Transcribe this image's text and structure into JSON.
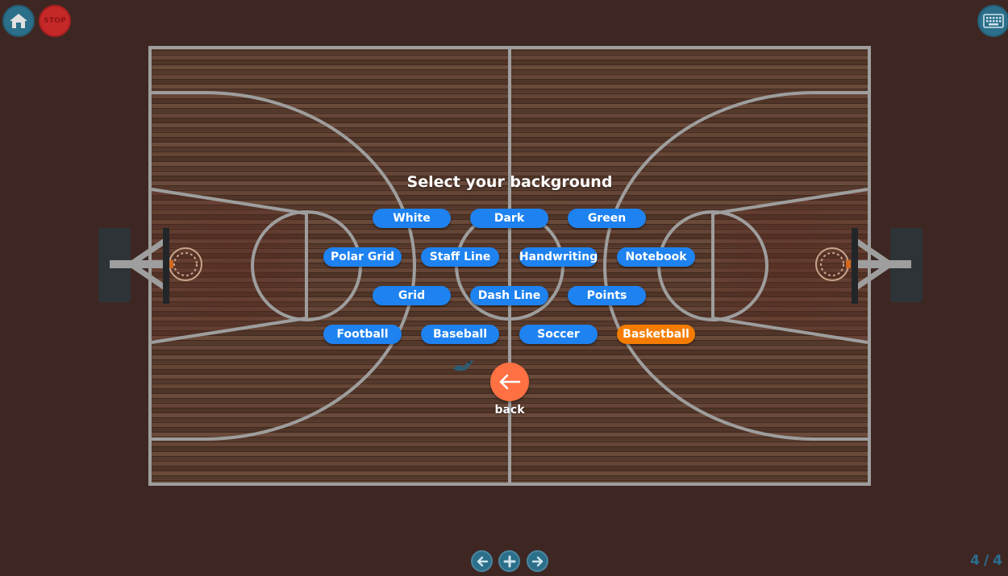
{
  "toolbar": {
    "home_icon": "home-icon",
    "stop_label": "STOP",
    "keyboard_icon": "keyboard-icon"
  },
  "dialog": {
    "title": "Select your background",
    "options": [
      {
        "label": "White",
        "selected": false
      },
      {
        "label": "Dark",
        "selected": false
      },
      {
        "label": "Green",
        "selected": false
      },
      {
        "label": "Polar Grid",
        "selected": false
      },
      {
        "label": "Staff Line",
        "selected": false
      },
      {
        "label": "Handwriting",
        "selected": false
      },
      {
        "label": "Notebook",
        "selected": false
      },
      {
        "label": "Grid",
        "selected": false
      },
      {
        "label": "Dash Line",
        "selected": false
      },
      {
        "label": "Points",
        "selected": false
      },
      {
        "label": "Football",
        "selected": false
      },
      {
        "label": "Baseball",
        "selected": false
      },
      {
        "label": "Soccer",
        "selected": false
      },
      {
        "label": "Basketball",
        "selected": true
      }
    ],
    "back_label": "back"
  },
  "pager": {
    "current": "4",
    "separator": "/",
    "total": "4"
  },
  "colors": {
    "page_background": "#3e2723",
    "option_button": "#1e82f0",
    "option_selected": "#f57c00",
    "back_button": "#ff7043",
    "court_lines": "#9e9e9e",
    "toolbar_button": "#2b6f8a",
    "stop_button": "#c62828"
  }
}
